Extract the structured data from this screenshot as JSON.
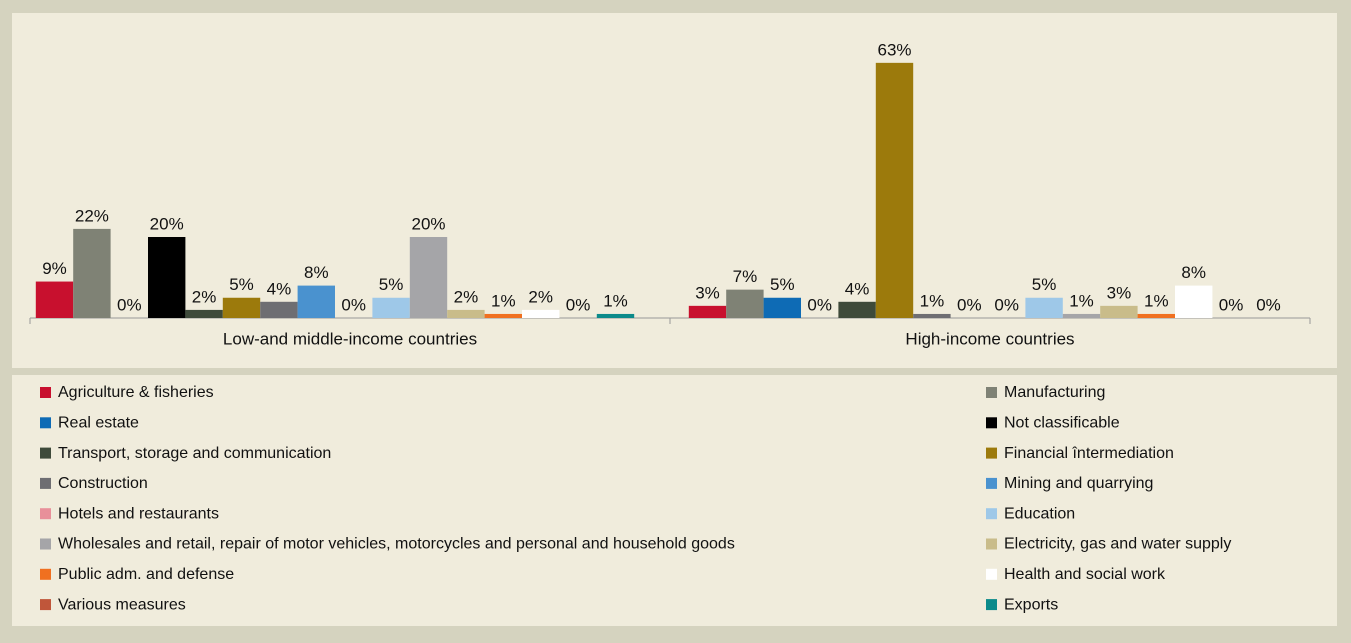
{
  "chart_data": {
    "type": "bar",
    "categories": [
      "Low-and middle-income countries",
      "High-income countries"
    ],
    "series": [
      {
        "name": "Agriculture & fisheries",
        "color": "#c8102e",
        "values": [
          9,
          3
        ],
        "value_labels": [
          "9%",
          "3%"
        ]
      },
      {
        "name": "Manufacturing",
        "color": "#7f8275",
        "values": [
          22,
          7
        ],
        "value_labels": [
          "22%",
          "7%"
        ]
      },
      {
        "name": "Real estate",
        "color": "#0e6bb5",
        "values": [
          0,
          5
        ],
        "value_labels": [
          "0%",
          "5%"
        ]
      },
      {
        "name": "Not classificable",
        "color": "#000000",
        "values": [
          20,
          0
        ],
        "value_labels": [
          "20%",
          "0%"
        ]
      },
      {
        "name": "Transport, storage and communication",
        "color": "#3e4a3a",
        "values": [
          2,
          4
        ],
        "value_labels": [
          "2%",
          "4%"
        ]
      },
      {
        "name": "Financial întermediation",
        "color": "#9c7a0c",
        "values": [
          5,
          63
        ],
        "value_labels": [
          "5%",
          "63%"
        ]
      },
      {
        "name": "Construction",
        "color": "#6e6e72",
        "values": [
          4,
          1
        ],
        "value_labels": [
          "4%",
          "1%"
        ]
      },
      {
        "name": "Mining and quarrying",
        "color": "#4a92cf",
        "values": [
          8,
          0
        ],
        "value_labels": [
          "8%",
          "0%"
        ]
      },
      {
        "name": "Hotels and restaurants",
        "color": "#e8909a",
        "values": [
          0,
          0
        ],
        "value_labels": [
          "0%",
          "0%"
        ]
      },
      {
        "name": "Education",
        "color": "#9ec8e8",
        "values": [
          5,
          5
        ],
        "value_labels": [
          "5%",
          "5%"
        ]
      },
      {
        "name": "Wholesales and retail, repair of motor vehicles, motorcycles and personal and household goods",
        "color": "#a5a5a8",
        "values": [
          20,
          1
        ],
        "value_labels": [
          "20%",
          "1%"
        ]
      },
      {
        "name": "Electricity, gas and water supply",
        "color": "#c9bc8a",
        "values": [
          2,
          3
        ],
        "value_labels": [
          "2%",
          "3%"
        ]
      },
      {
        "name": "Public adm. and defense",
        "color": "#f07020",
        "values": [
          1,
          1
        ],
        "value_labels": [
          "1%",
          "1%"
        ]
      },
      {
        "name": "Health and social work",
        "color": "#ffffff",
        "values": [
          2,
          8
        ],
        "value_labels": [
          "2%",
          "8%"
        ]
      },
      {
        "name": "Various measures",
        "color": "#c0563a",
        "values": [
          0,
          0
        ],
        "value_labels": [
          "0%",
          "0%"
        ]
      },
      {
        "name": "Exports",
        "color": "#0b8a8a",
        "values": [
          1,
          0
        ],
        "value_labels": [
          "1%",
          "0%"
        ]
      }
    ]
  }
}
